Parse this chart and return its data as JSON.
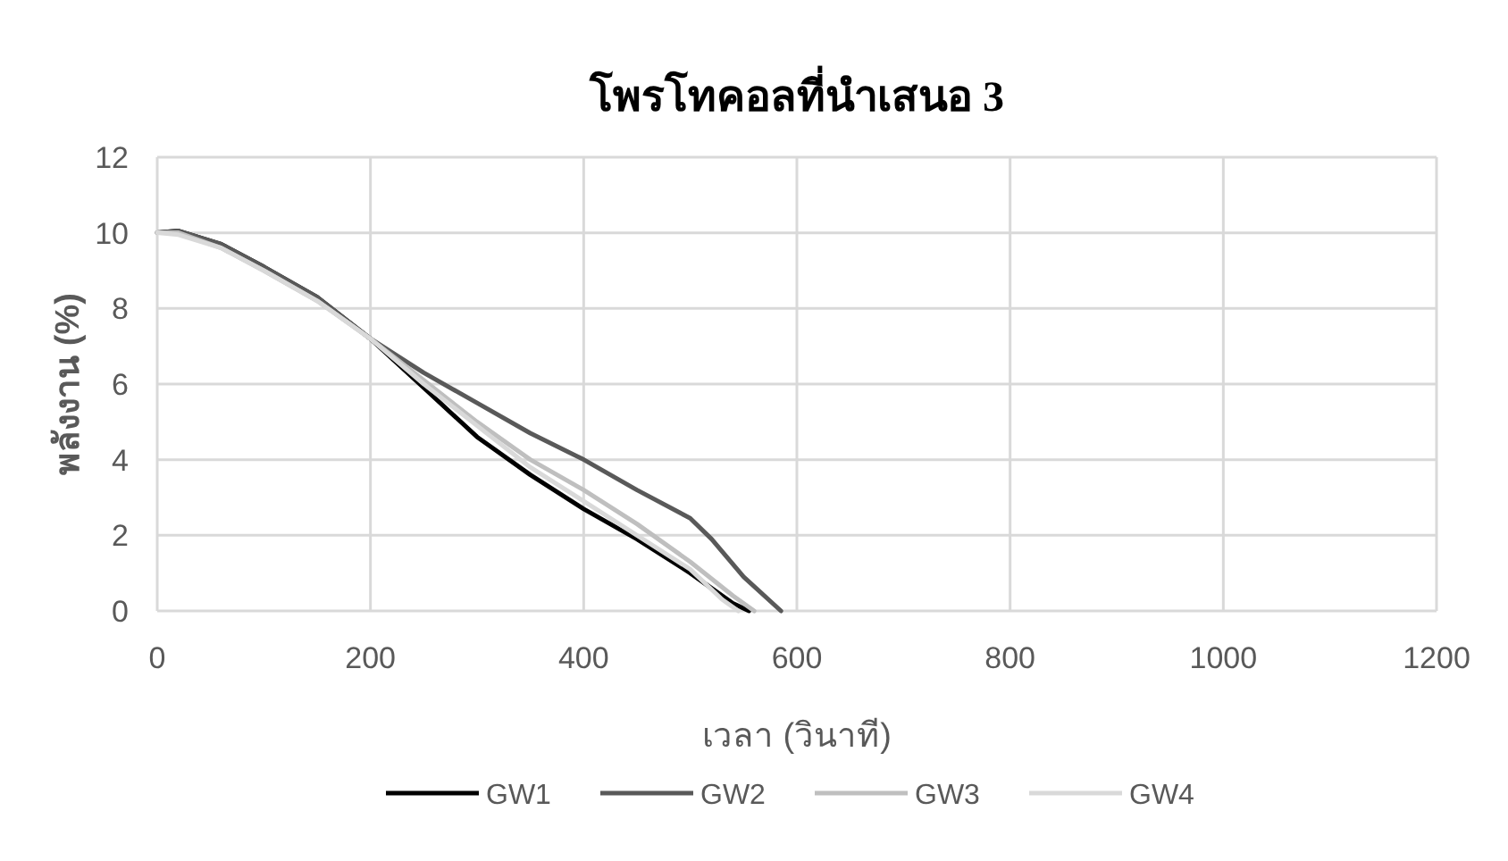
{
  "chart_data": {
    "type": "line",
    "title": "โพรโทคอลที่นำเสนอ 3",
    "xlabel": "เวลา (วินาที)",
    "ylabel": "พลังงาน (%)",
    "xlim": [
      0,
      1200
    ],
    "xticks": [
      0,
      200,
      400,
      600,
      800,
      1000,
      1200
    ],
    "ylim": [
      0,
      12
    ],
    "yticks": [
      0,
      2,
      4,
      6,
      8,
      10,
      12
    ],
    "grid": true,
    "legend": "bottom",
    "marker": "none",
    "series": [
      {
        "name": "GW1",
        "color": "#000000",
        "x": [
          0,
          20,
          60,
          100,
          150,
          200,
          250,
          300,
          350,
          400,
          450,
          500,
          540,
          555
        ],
        "values": [
          10,
          10.05,
          9.7,
          9.1,
          8.3,
          7.2,
          5.9,
          4.6,
          3.6,
          2.7,
          1.9,
          1.0,
          0.2,
          0
        ]
      },
      {
        "name": "GW2",
        "color": "#595959",
        "x": [
          0,
          20,
          60,
          100,
          150,
          200,
          250,
          300,
          350,
          400,
          450,
          500,
          520,
          550,
          585
        ],
        "values": [
          10,
          10.05,
          9.7,
          9.1,
          8.3,
          7.2,
          6.3,
          5.5,
          4.7,
          4.0,
          3.2,
          2.45,
          1.9,
          0.9,
          0
        ]
      },
      {
        "name": "GW3",
        "color": "#bfbfbf",
        "x": [
          0,
          20,
          60,
          100,
          150,
          200,
          250,
          300,
          350,
          400,
          450,
          500,
          540,
          560
        ],
        "values": [
          10,
          10,
          9.6,
          9.0,
          8.2,
          7.2,
          6.1,
          5.0,
          4.0,
          3.2,
          2.3,
          1.3,
          0.4,
          0
        ]
      },
      {
        "name": "GW4",
        "color": "#d9d9d9",
        "x": [
          0,
          20,
          60,
          100,
          150,
          200,
          250,
          300,
          350,
          400,
          450,
          500,
          530,
          545
        ],
        "values": [
          10,
          9.95,
          9.6,
          9.0,
          8.2,
          7.2,
          6.0,
          4.9,
          3.8,
          2.9,
          2.0,
          1.1,
          0.3,
          0
        ]
      }
    ]
  }
}
